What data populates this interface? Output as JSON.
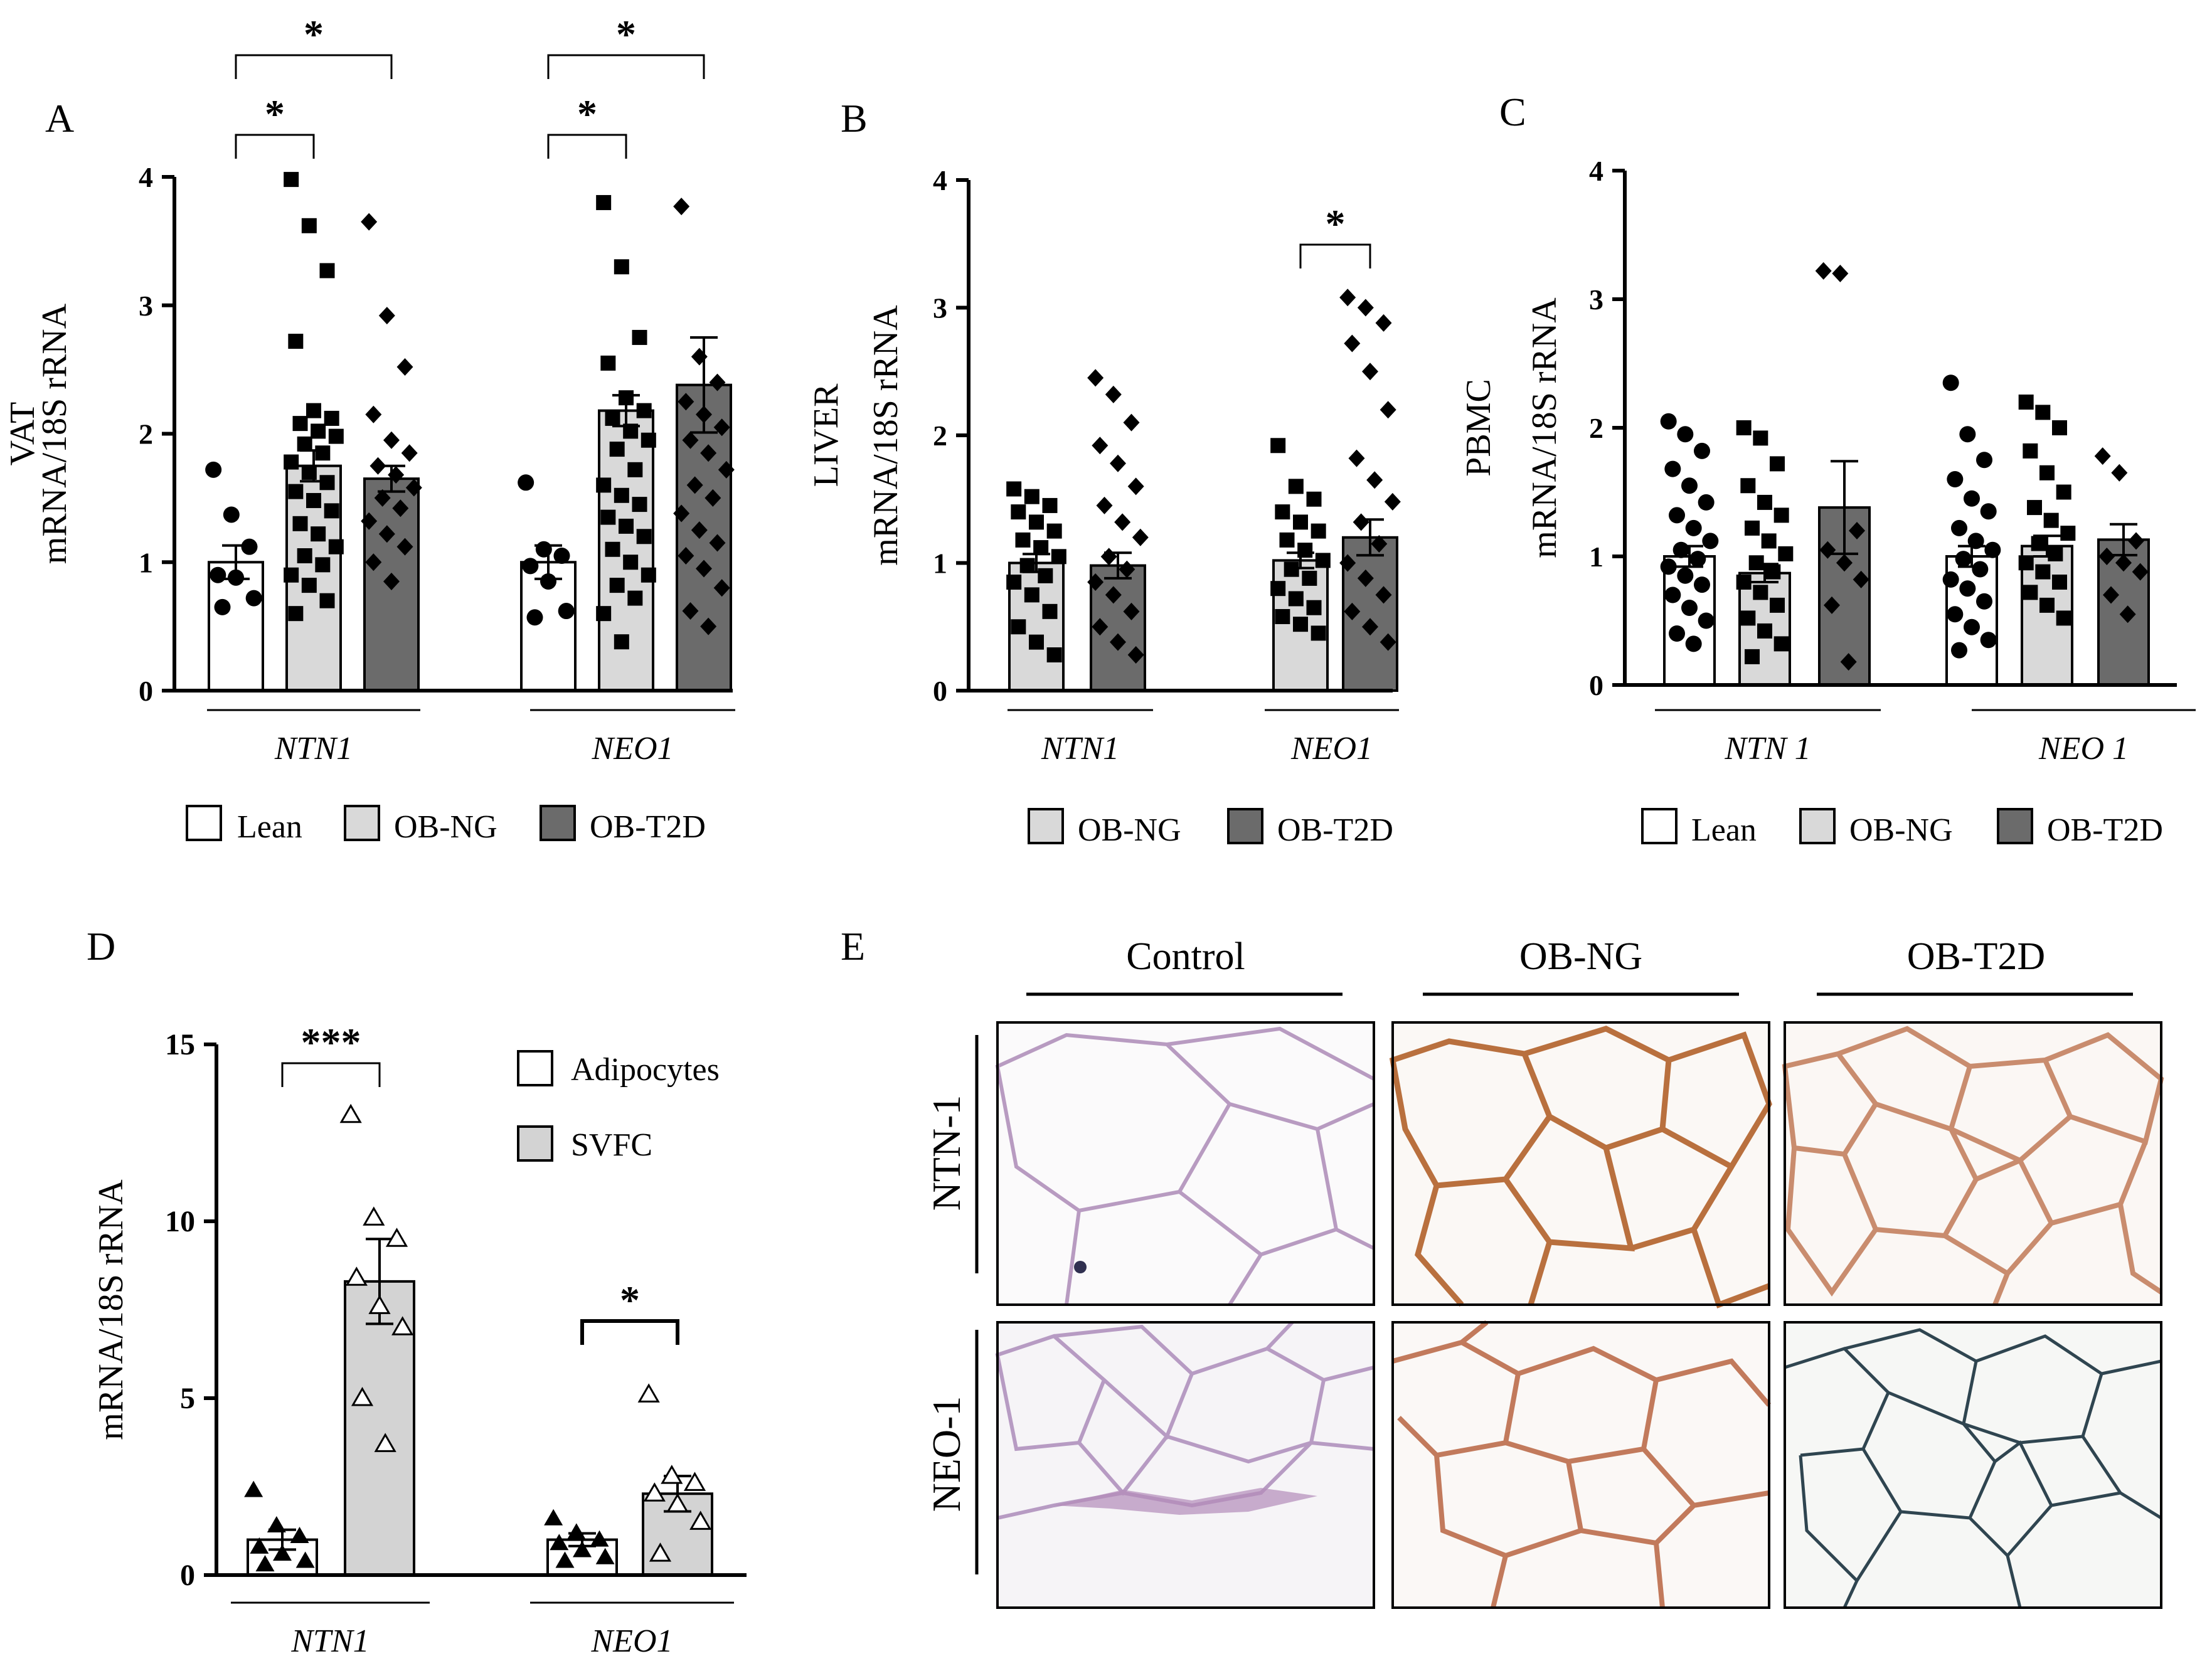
{
  "panel_letters": {
    "A": "A",
    "B": "B",
    "C": "C",
    "D": "D",
    "E": "E"
  },
  "colors": {
    "lean": "#ffffff",
    "ob_ng": "#d9d9d9",
    "ob_t2d": "#6b6b6b",
    "adipocytes": "#ffffff",
    "svfc": "#d3d3d3",
    "axis": "#000000"
  },
  "legends": {
    "lean": "Lean",
    "ob_ng": "OB-NG",
    "ob_t2d": "OB-T2D",
    "adipocytes": "Adipocytes",
    "svfc": "SVFC"
  },
  "sig_marks": {
    "single": "*",
    "triple": "***"
  },
  "chart_data": [
    {
      "panel": "A",
      "type": "bar",
      "ylabel_prefix": "VAT",
      "ylabel": "mRNA/18S rRNA",
      "ylim": [
        0,
        4
      ],
      "yticks": [
        "0",
        "1",
        "2",
        "3",
        "4"
      ],
      "groups": [
        "NTN1",
        "NEO1"
      ],
      "series": [
        {
          "name": "Lean",
          "values": [
            1.0,
            1.0
          ],
          "sem": [
            0.13,
            0.13
          ],
          "points": [
            [
              1.72,
              1.37,
              1.12,
              0.9,
              0.88,
              0.72,
              0.65
            ],
            [
              1.62,
              1.1,
              1.05,
              0.97,
              0.85,
              0.62,
              0.57
            ]
          ]
        },
        {
          "name": "OB-NG",
          "values": [
            1.75,
            2.18
          ],
          "sem": [
            0.12,
            0.12
          ],
          "points": [
            [
              3.98,
              3.62,
              3.27,
              2.72,
              2.18,
              2.12,
              2.08,
              2.02,
              1.98,
              1.92,
              1.85,
              1.78,
              1.7,
              1.62,
              1.55,
              1.48,
              1.4,
              1.3,
              1.22,
              1.12,
              1.05,
              0.98,
              0.9,
              0.82,
              0.7,
              0.6
            ],
            [
              3.8,
              3.3,
              2.75,
              2.55,
              2.28,
              2.18,
              2.12,
              2.02,
              1.95,
              1.88,
              1.72,
              1.6,
              1.52,
              1.45,
              1.35,
              1.28,
              1.2,
              1.1,
              1.0,
              0.9,
              0.82,
              0.72,
              0.6,
              0.38
            ]
          ]
        },
        {
          "name": "OB-T2D",
          "values": [
            1.65,
            2.38
          ],
          "sem": [
            0.1,
            0.37
          ],
          "points": [
            [
              3.65,
              2.92,
              2.52,
              2.15,
              1.95,
              1.85,
              1.75,
              1.68,
              1.58,
              1.5,
              1.42,
              1.32,
              1.22,
              1.12,
              1.0,
              0.85
            ],
            [
              3.77,
              2.6,
              2.4,
              2.25,
              2.15,
              2.05,
              1.95,
              1.85,
              1.72,
              1.6,
              1.5,
              1.38,
              1.25,
              1.15,
              1.05,
              0.95,
              0.8,
              0.62,
              0.5
            ]
          ]
        }
      ],
      "xlabels": [
        "NTN1",
        "NEO1"
      ],
      "significance": [
        {
          "group": 0,
          "from": 0,
          "to": 1,
          "label": "*"
        },
        {
          "group": 0,
          "from": 0,
          "to": 2,
          "label": "*"
        },
        {
          "group": 1,
          "from": 0,
          "to": 1,
          "label": "*"
        },
        {
          "group": 1,
          "from": 0,
          "to": 2,
          "label": "*"
        }
      ]
    },
    {
      "panel": "B",
      "type": "bar",
      "ylabel_prefix": "LIVER",
      "ylabel": "mRNA/18S rRNA",
      "ylim": [
        0,
        4
      ],
      "yticks": [
        "0",
        "1",
        "2",
        "3",
        "4"
      ],
      "groups": [
        "NTN1",
        "NEO1"
      ],
      "series": [
        {
          "name": "OB-NG",
          "values": [
            1.0,
            1.02
          ],
          "sem": [
            0.07,
            0.06
          ],
          "points": [
            [
              1.58,
              1.52,
              1.45,
              1.4,
              1.32,
              1.25,
              1.18,
              1.12,
              1.05,
              0.98,
              0.9,
              0.85,
              0.75,
              0.62,
              0.5,
              0.38,
              0.28
            ],
            [
              1.92,
              1.6,
              1.5,
              1.4,
              1.32,
              1.25,
              1.18,
              1.1,
              1.02,
              0.95,
              0.88,
              0.8,
              0.72,
              0.65,
              0.58,
              0.52,
              0.45
            ]
          ]
        },
        {
          "name": "OB-T2D",
          "values": [
            0.98,
            1.2
          ],
          "sem": [
            0.1,
            0.14
          ],
          "points": [
            [
              2.45,
              2.32,
              2.1,
              1.92,
              1.78,
              1.6,
              1.45,
              1.32,
              1.2,
              1.05,
              0.95,
              0.85,
              0.75,
              0.62,
              0.5,
              0.38,
              0.28
            ],
            [
              3.08,
              3.0,
              2.88,
              2.72,
              2.5,
              2.2,
              1.82,
              1.65,
              1.48,
              1.32,
              1.15,
              1.0,
              0.88,
              0.75,
              0.62,
              0.5,
              0.38
            ]
          ]
        }
      ],
      "xlabels": [
        "NTN1",
        "NEO1"
      ],
      "significance": [
        {
          "group": 1,
          "from": 0,
          "to": 1,
          "label": "*"
        }
      ]
    },
    {
      "panel": "C",
      "type": "bar",
      "ylabel_prefix": "PBMC",
      "ylabel": "mRNA/18S rRNA",
      "ylim": [
        0,
        4
      ],
      "yticks": [
        "0",
        "1",
        "2",
        "3",
        "4"
      ],
      "groups": [
        "NTN 1",
        "NEO 1"
      ],
      "series": [
        {
          "name": "Lean",
          "values": [
            1.0,
            1.0
          ],
          "sem": [
            0.08,
            0.08
          ],
          "points": [
            [
              2.05,
              1.95,
              1.82,
              1.68,
              1.55,
              1.42,
              1.32,
              1.22,
              1.12,
              1.05,
              0.98,
              0.92,
              0.85,
              0.78,
              0.7,
              0.6,
              0.5,
              0.4,
              0.32
            ],
            [
              2.35,
              1.95,
              1.75,
              1.6,
              1.45,
              1.35,
              1.22,
              1.12,
              1.05,
              0.98,
              0.9,
              0.82,
              0.75,
              0.65,
              0.55,
              0.45,
              0.35,
              0.27
            ]
          ]
        },
        {
          "name": "OB-NG",
          "values": [
            0.87,
            1.08
          ],
          "sem": [
            0.07,
            0.08
          ],
          "points": [
            [
              2.0,
              1.92,
              1.72,
              1.55,
              1.42,
              1.32,
              1.22,
              1.12,
              1.02,
              0.95,
              0.88,
              0.8,
              0.72,
              0.62,
              0.52,
              0.42,
              0.32,
              0.22
            ],
            [
              2.2,
              2.12,
              2.0,
              1.82,
              1.65,
              1.5,
              1.38,
              1.28,
              1.18,
              1.1,
              1.02,
              0.95,
              0.88,
              0.8,
              0.72,
              0.62,
              0.52
            ]
          ]
        },
        {
          "name": "OB-T2D",
          "values": [
            1.38,
            1.13
          ],
          "sem": [
            0.36,
            0.12
          ],
          "points": [
            [
              3.22,
              3.2,
              1.2,
              1.05,
              0.95,
              0.82,
              0.62,
              0.18
            ],
            [
              1.78,
              1.65,
              1.12,
              1.0,
              0.95,
              0.88,
              0.7,
              0.55
            ]
          ]
        }
      ],
      "xlabels": [
        "NTN 1",
        "NEO 1"
      ],
      "significance": []
    },
    {
      "panel": "D",
      "type": "bar",
      "ylabel_prefix": "",
      "ylabel": "mRNA/18S rRNA",
      "ylim": [
        0,
        15
      ],
      "yticks": [
        "0",
        "5",
        "10",
        "15"
      ],
      "groups": [
        "NTN1",
        "NEO1"
      ],
      "series": [
        {
          "name": "Adipocytes",
          "values": [
            1.0,
            1.0
          ],
          "sem": [
            0.28,
            0.18
          ],
          "points": [
            [
              2.4,
              1.4,
              1.1,
              0.8,
              0.6,
              0.4,
              0.3
            ],
            [
              1.6,
              1.2,
              1.0,
              0.9,
              0.7,
              0.5,
              0.4
            ]
          ]
        },
        {
          "name": "SVFC",
          "values": [
            8.3,
            2.3
          ],
          "sem": [
            1.2,
            0.5
          ],
          "points": [
            [
              13.0,
              10.1,
              9.5,
              8.4,
              7.6,
              7.0,
              5.0,
              3.7
            ],
            [
              5.1,
              2.8,
              2.6,
              2.3,
              2.0,
              1.5,
              0.6
            ]
          ]
        }
      ],
      "xlabels": [
        "NTN1",
        "NEO1"
      ],
      "significance": [
        {
          "group": 0,
          "from": 0,
          "to": 1,
          "label": "***"
        },
        {
          "group": 1,
          "from": 0,
          "to": 1,
          "label": "*"
        }
      ]
    }
  ],
  "panel_E": {
    "columns": [
      "Control",
      "OB-NG",
      "OB-T2D"
    ],
    "rows": [
      "NTN-1",
      "NEO-1"
    ]
  }
}
